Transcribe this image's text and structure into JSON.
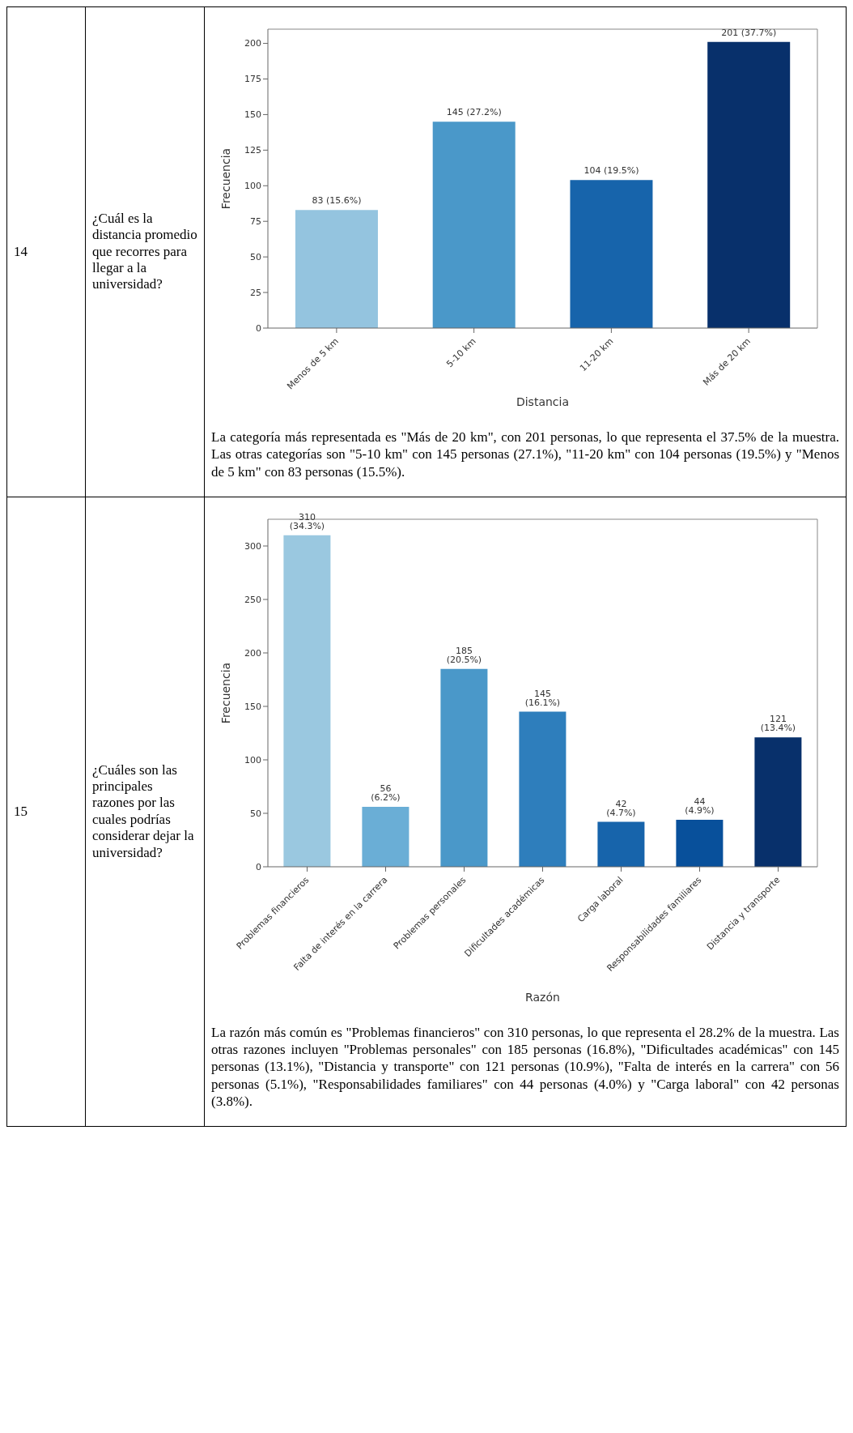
{
  "chart_data": [
    {
      "type": "bar",
      "title": "¿Cuál es la distancia promedio que recorres para llegar a la universidad?",
      "xlabel": "Distancia",
      "ylabel": "Frecuencia",
      "categories": [
        "Menos de 5 km",
        "5-10 km",
        "11-20 km",
        "Más de 20 km"
      ],
      "values": [
        83,
        145,
        104,
        201
      ],
      "colors": [
        "#94c4df",
        "#4a98c9",
        "#1764ab",
        "#08306b"
      ],
      "value_labels": [
        "83 (15.6%)",
        "145 (27.2%)",
        "104 (19.5%)",
        "201 (37.7%)"
      ],
      "ylim": [
        0,
        210
      ],
      "yticks": [
        0,
        25,
        50,
        75,
        100,
        125,
        150,
        175,
        200
      ],
      "grid": false,
      "legend": false,
      "annotations": [
        "14",
        "La categoría más representada es \"Más de 20 km\", con 201 personas, lo que representa el 37.5% de la muestra. Las otras categorías son \"5-10 km\" con 145 personas (27.1%), \"11-20 km\" con 104 personas (19.5%) y \"Menos de 5 km\" con 83 personas (15.5%)."
      ]
    },
    {
      "type": "bar",
      "title": "¿Cuáles son las principales razones por las cuales podrías considerar dejar la universidad?",
      "xlabel": "Razón",
      "ylabel": "Frecuencia",
      "categories": [
        "Problemas financieros",
        "Falta de interés en la carrera",
        "Problemas personales",
        "Dificultades académicas",
        "Carga laboral",
        "Responsabilidades familiares",
        "Distancia y transporte"
      ],
      "values": [
        310,
        56,
        185,
        145,
        42,
        44,
        121
      ],
      "colors": [
        "#9ac8e0",
        "#6aaed6",
        "#4a98c9",
        "#2e7ebc",
        "#1764ab",
        "#08509b",
        "#08306b"
      ],
      "value_labels": [
        "310 (34.3%)",
        "56 (6.2%)",
        "185 (20.5%)",
        "145 (16.1%)",
        "42 (4.7%)",
        "44 (4.9%)",
        "121 (13.4%)"
      ],
      "ylim": [
        0,
        325
      ],
      "yticks": [
        0,
        50,
        100,
        150,
        200,
        250,
        300
      ],
      "grid": false,
      "legend": false,
      "annotations": [
        "15",
        "La razón más común es \"Problemas financieros\" con 310 personas, lo que representa el 28.2% de la muestra. Las otras razones incluyen \"Problemas personales\" con 185 personas (16.8%), \"Dificultades académicas\" con 145 personas (13.1%), \"Distancia y transporte\" con 121 personas (10.9%), \"Falta de interés en la carrera\" con 56 personas (5.1%), \"Responsabilidades familiares\" con 44 personas (4.0%) y \"Carga laboral\" con 42 personas (3.8%)."
      ]
    }
  ]
}
